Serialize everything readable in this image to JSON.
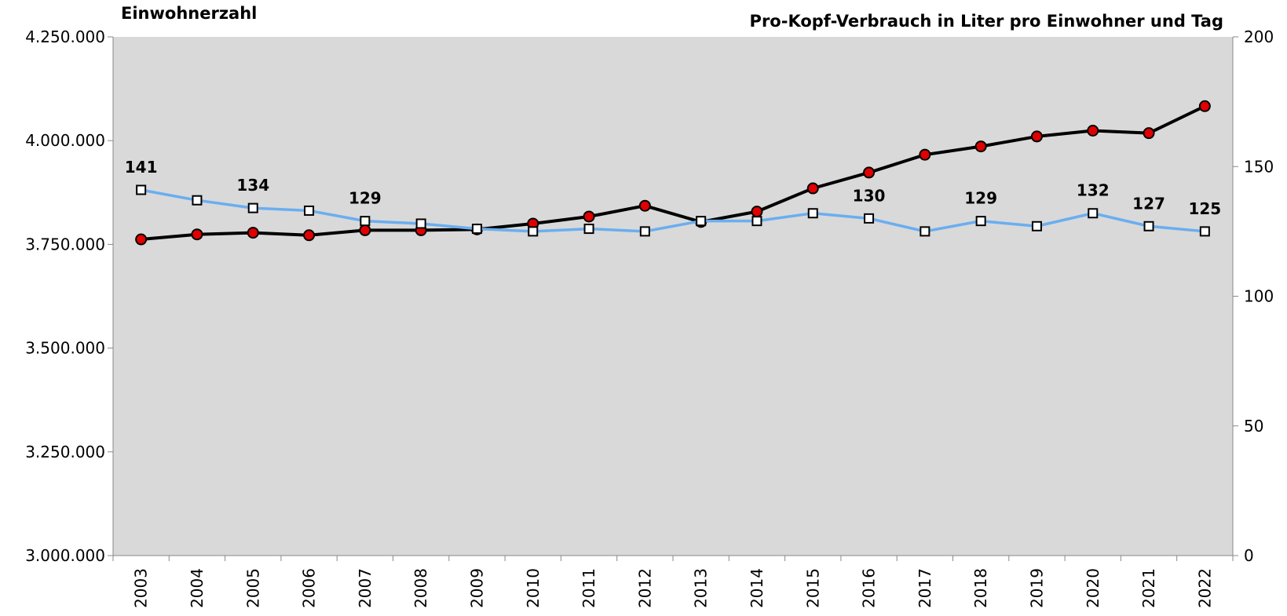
{
  "chart_data": {
    "type": "line",
    "title": "Einwohnerzahl",
    "y2_title": "Pro-Kopf-Verbrauch in Liter pro Einwohner und Tag",
    "categories": [
      "2003",
      "2004",
      "2005",
      "2006",
      "2007",
      "2008",
      "2009",
      "2010",
      "2011",
      "2012",
      "2013",
      "2014",
      "2015",
      "2016",
      "2017",
      "2018",
      "2019",
      "2020",
      "2021",
      "2022"
    ],
    "series": [
      {
        "color": "#000000",
        "marker": "circle",
        "marker_color": "#e00000",
        "axis": "y",
        "values": [
          3762000,
          3774000,
          3778000,
          3772000,
          3784000,
          3784000,
          3786000,
          3800000,
          3817000,
          3843000,
          3804000,
          3829000,
          3885000,
          3923000,
          3966000,
          3986000,
          4010000,
          4024000,
          4018000,
          4083000
        ]
      },
      {
        "color": "#6aaef0",
        "marker": "square",
        "marker_color": "#ffffff",
        "axis": "y2",
        "values": [
          141,
          137,
          134,
          133,
          129,
          128,
          126,
          125,
          126,
          125,
          129,
          129,
          132,
          130,
          125,
          129,
          127,
          132,
          127,
          125
        ],
        "value_labels": [
          "141",
          null,
          "134",
          null,
          "129",
          null,
          null,
          null,
          null,
          null,
          null,
          null,
          null,
          "130",
          null,
          "129",
          null,
          "132",
          "127",
          "125"
        ]
      }
    ],
    "ylim": [
      3000000,
      4250000
    ],
    "yticks": [
      {
        "value": 3000000,
        "label": "3.000.000"
      },
      {
        "value": 3250000,
        "label": "3.250.000"
      },
      {
        "value": 3500000,
        "label": "3.500.000"
      },
      {
        "value": 3750000,
        "label": "3.750.000"
      },
      {
        "value": 4000000,
        "label": "4.000.000"
      },
      {
        "value": 4250000,
        "label": "4.250.000"
      }
    ],
    "y2lim": [
      0,
      200
    ],
    "y2ticks": [
      0,
      50,
      100,
      150,
      200
    ],
    "plot_background": "#d9d9d9",
    "grid": false
  }
}
